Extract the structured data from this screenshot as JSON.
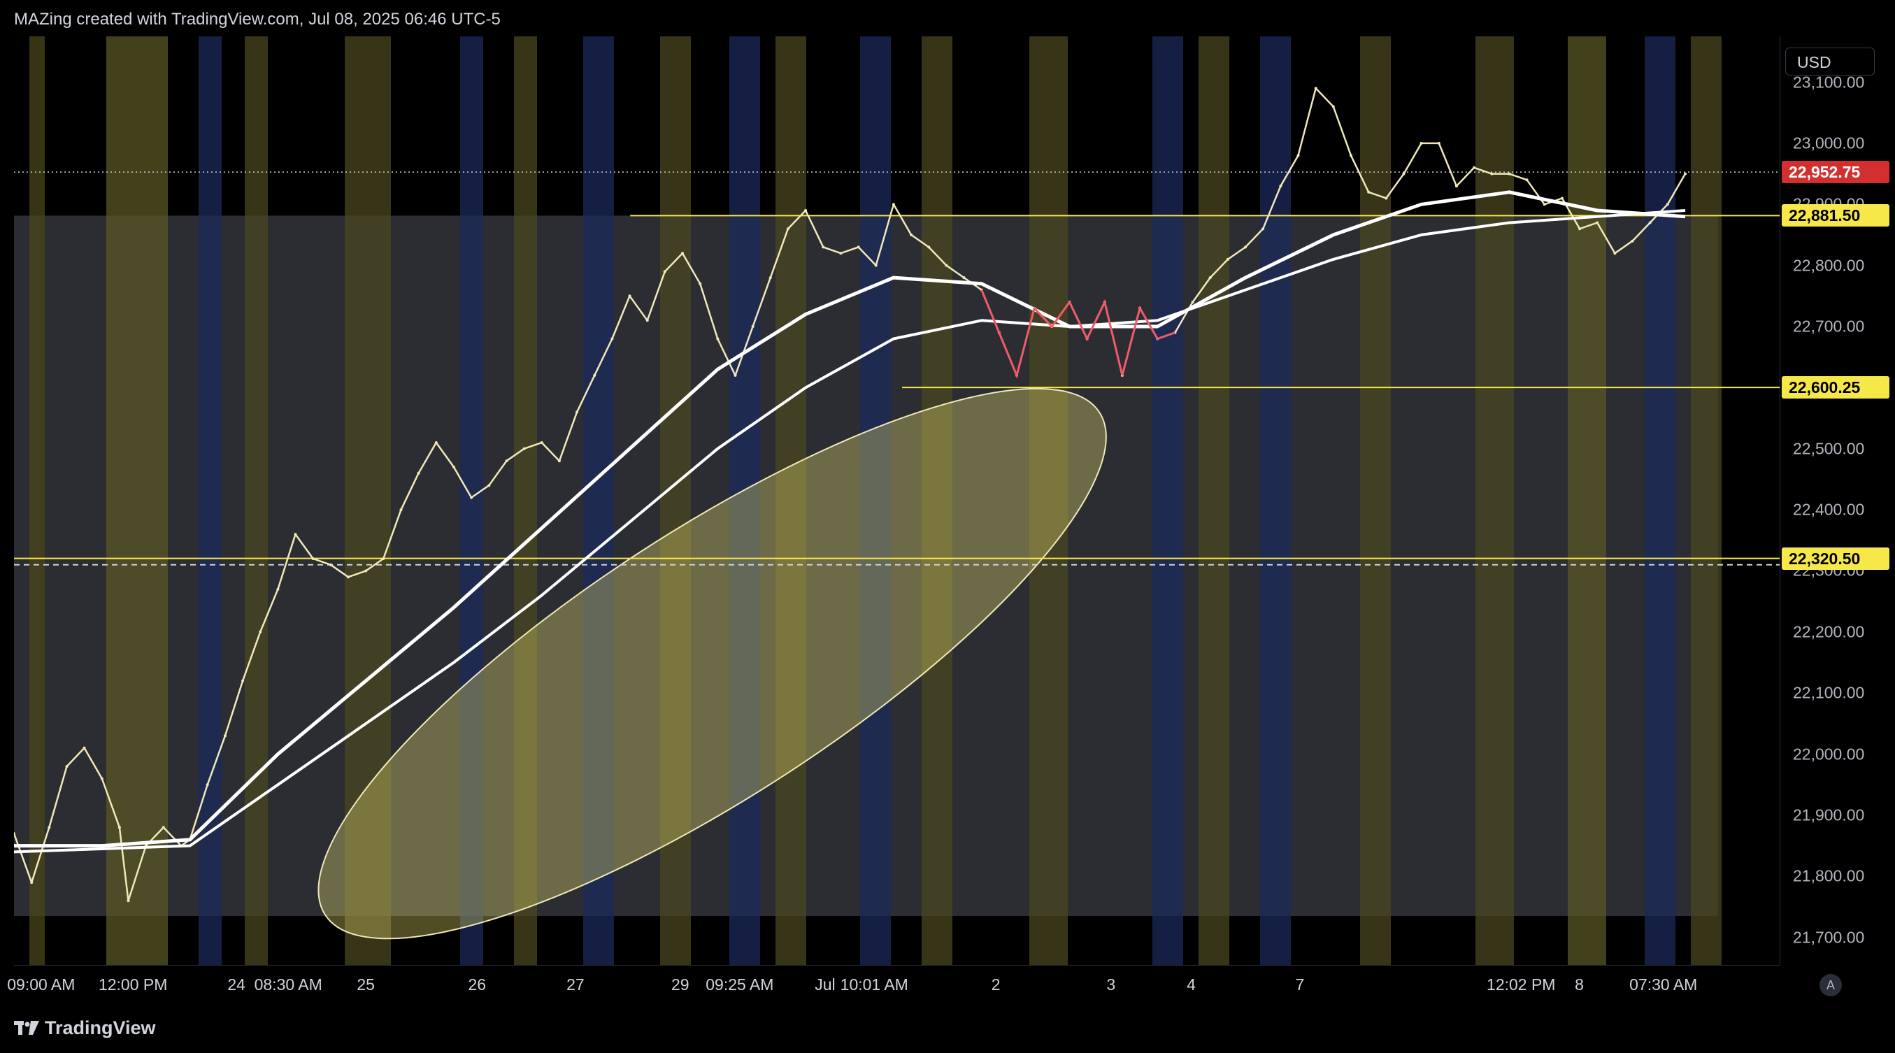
{
  "header": {
    "title": "MAZing created with TradingView.com, Jul 08, 2025 06:46 UTC-5"
  },
  "currency": "USD",
  "footer": {
    "brand": "TradingView"
  },
  "auto_label": "A",
  "colors": {
    "background": "#000000",
    "price_line": "#f1e8b8",
    "bear_line": "#f05a6a",
    "ma": "#ffffff",
    "level": "#f7e84a"
  },
  "chart_data": {
    "type": "line",
    "title": "",
    "xlabel": "",
    "ylabel": "",
    "y_ticks": [
      "23,100.00",
      "23,000.00",
      "22,900.00",
      "22,800.00",
      "22,700.00",
      "22,600.00",
      "22,500.00",
      "22,400.00",
      "22,300.00",
      "22,200.00",
      "22,100.00",
      "22,000.00",
      "21,900.00",
      "21,800.00",
      "21,700.00"
    ],
    "y_tick_values": [
      23100,
      23000,
      22900,
      22800,
      22700,
      22600,
      22500,
      22400,
      22300,
      22200,
      22100,
      22000,
      21900,
      21800,
      21700
    ],
    "ylim": [
      21655,
      23175
    ],
    "x_ticks": [
      "09:00 AM",
      "12:00 PM",
      "24",
      "08:30 AM",
      "25",
      "26",
      "27",
      "29",
      "09:25 AM",
      "Jul",
      "10:01 AM",
      "2",
      "3",
      "4",
      "7",
      "12:02 PM",
      "8",
      "07:30 AM"
    ],
    "x_tick_positions": [
      0.021,
      0.092,
      0.172,
      0.212,
      0.272,
      0.358,
      0.434,
      0.515,
      0.561,
      0.627,
      0.665,
      0.759,
      0.848,
      0.91,
      0.994,
      1.165,
      1.21,
      1.275
    ],
    "price_labels": [
      {
        "text": "22,952.75",
        "value": 22952.75,
        "bg": "#d32f2f",
        "fg": "#ffffff"
      },
      {
        "text": "22,881.50",
        "value": 22881.5,
        "bg": "#f7e84a",
        "fg": "#000000"
      },
      {
        "text": "22,600.25",
        "value": 22600.25,
        "bg": "#f7e84a",
        "fg": "#000000"
      },
      {
        "text": "22,320.50",
        "value": 22320.5,
        "bg": "#f7e84a",
        "fg": "#000000"
      }
    ],
    "levels": [
      22881.5,
      22600.25,
      22320.5
    ],
    "series": [
      {
        "kind": "price",
        "points": [
          [
            0,
            21870
          ],
          [
            0.01,
            21790
          ],
          [
            0.02,
            21880
          ],
          [
            0.03,
            21980
          ],
          [
            0.04,
            22010
          ],
          [
            0.05,
            21960
          ],
          [
            0.06,
            21880
          ],
          [
            0.065,
            21760
          ],
          [
            0.075,
            21850
          ],
          [
            0.085,
            21880
          ],
          [
            0.095,
            21850
          ],
          [
            0.1,
            21860
          ],
          [
            0.11,
            21950
          ],
          [
            0.12,
            22030
          ],
          [
            0.13,
            22120
          ],
          [
            0.14,
            22200
          ],
          [
            0.15,
            22270
          ],
          [
            0.16,
            22360
          ],
          [
            0.17,
            22320
          ],
          [
            0.18,
            22310
          ],
          [
            0.19,
            22290
          ],
          [
            0.2,
            22300
          ],
          [
            0.21,
            22320
          ],
          [
            0.22,
            22400
          ],
          [
            0.23,
            22460
          ],
          [
            0.24,
            22510
          ],
          [
            0.25,
            22470
          ],
          [
            0.26,
            22420
          ],
          [
            0.27,
            22440
          ],
          [
            0.28,
            22480
          ],
          [
            0.29,
            22500
          ],
          [
            0.3,
            22510
          ],
          [
            0.31,
            22480
          ],
          [
            0.32,
            22560
          ],
          [
            0.33,
            22620
          ],
          [
            0.34,
            22680
          ],
          [
            0.35,
            22750
          ],
          [
            0.36,
            22710
          ],
          [
            0.37,
            22790
          ],
          [
            0.38,
            22820
          ],
          [
            0.39,
            22770
          ],
          [
            0.4,
            22680
          ],
          [
            0.41,
            22620
          ],
          [
            0.42,
            22700
          ],
          [
            0.43,
            22780
          ],
          [
            0.44,
            22860
          ],
          [
            0.45,
            22890
          ],
          [
            0.46,
            22830
          ],
          [
            0.47,
            22820
          ],
          [
            0.48,
            22830
          ],
          [
            0.49,
            22800
          ],
          [
            0.5,
            22900
          ],
          [
            0.51,
            22850
          ],
          [
            0.52,
            22830
          ],
          [
            0.53,
            22800
          ],
          [
            0.54,
            22780
          ],
          [
            0.55,
            22760
          ],
          [
            0.56,
            22690
          ],
          [
            0.57,
            22620
          ],
          [
            0.58,
            22730
          ],
          [
            0.59,
            22700
          ],
          [
            0.6,
            22740
          ],
          [
            0.61,
            22680
          ],
          [
            0.62,
            22740
          ],
          [
            0.63,
            22620
          ],
          [
            0.64,
            22730
          ],
          [
            0.65,
            22680
          ],
          [
            0.66,
            22690
          ],
          [
            0.67,
            22740
          ],
          [
            0.68,
            22780
          ],
          [
            0.69,
            22810
          ],
          [
            0.7,
            22830
          ],
          [
            0.71,
            22860
          ],
          [
            0.72,
            22930
          ],
          [
            0.73,
            22980
          ],
          [
            0.74,
            23090
          ],
          [
            0.75,
            23060
          ],
          [
            0.76,
            22980
          ],
          [
            0.77,
            22920
          ],
          [
            0.78,
            22910
          ],
          [
            0.79,
            22950
          ],
          [
            0.8,
            23000
          ],
          [
            0.81,
            23000
          ],
          [
            0.82,
            22930
          ],
          [
            0.83,
            22960
          ],
          [
            0.84,
            22950
          ],
          [
            0.85,
            22950
          ],
          [
            0.86,
            22940
          ],
          [
            0.87,
            22900
          ],
          [
            0.88,
            22910
          ],
          [
            0.89,
            22860
          ],
          [
            0.9,
            22870
          ],
          [
            0.91,
            22820
          ],
          [
            0.92,
            22840
          ],
          [
            0.93,
            22870
          ],
          [
            0.94,
            22900
          ],
          [
            0.95,
            22950
          ]
        ]
      },
      {
        "kind": "ma_fast",
        "points": [
          [
            0,
            21850
          ],
          [
            0.05,
            21850
          ],
          [
            0.1,
            21860
          ],
          [
            0.15,
            22000
          ],
          [
            0.2,
            22120
          ],
          [
            0.25,
            22240
          ],
          [
            0.3,
            22370
          ],
          [
            0.35,
            22500
          ],
          [
            0.4,
            22630
          ],
          [
            0.45,
            22720
          ],
          [
            0.5,
            22780
          ],
          [
            0.55,
            22770
          ],
          [
            0.6,
            22700
          ],
          [
            0.65,
            22700
          ],
          [
            0.7,
            22780
          ],
          [
            0.75,
            22850
          ],
          [
            0.8,
            22900
          ],
          [
            0.85,
            22920
          ],
          [
            0.9,
            22890
          ],
          [
            0.95,
            22880
          ]
        ]
      },
      {
        "kind": "ma_slow",
        "points": [
          [
            0,
            21840
          ],
          [
            0.05,
            21845
          ],
          [
            0.1,
            21850
          ],
          [
            0.15,
            21950
          ],
          [
            0.2,
            22050
          ],
          [
            0.25,
            22150
          ],
          [
            0.3,
            22260
          ],
          [
            0.35,
            22380
          ],
          [
            0.4,
            22500
          ],
          [
            0.45,
            22600
          ],
          [
            0.5,
            22680
          ],
          [
            0.55,
            22710
          ],
          [
            0.6,
            22700
          ],
          [
            0.65,
            22710
          ],
          [
            0.7,
            22760
          ],
          [
            0.75,
            22810
          ],
          [
            0.8,
            22850
          ],
          [
            0.85,
            22870
          ],
          [
            0.9,
            22880
          ],
          [
            0.95,
            22890
          ]
        ]
      }
    ]
  }
}
